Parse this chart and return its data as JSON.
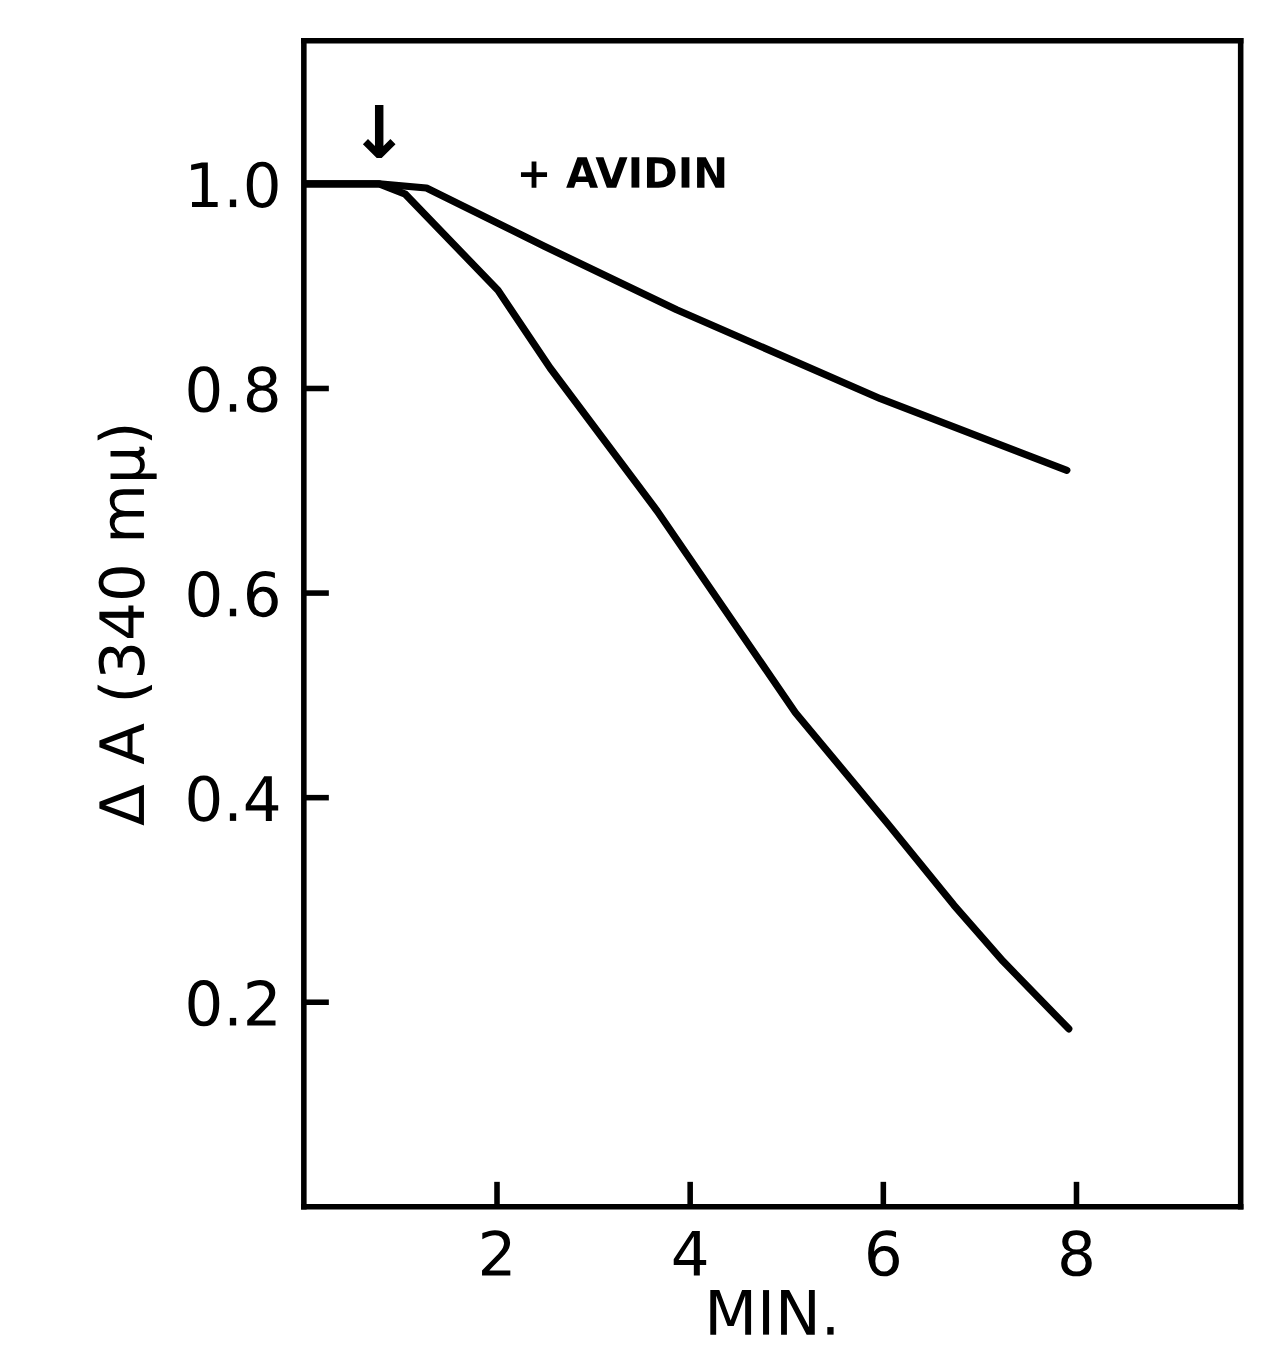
{
  "chart_data": {
    "type": "line",
    "xlabel": "MIN.",
    "ylabel": "Δ A (340 mμ)",
    "xlim": [
      0,
      9.7
    ],
    "ylim": [
      0,
      1.14
    ],
    "xticks": [
      2,
      4,
      6,
      8
    ],
    "yticks": [
      0.2,
      0.4,
      0.6,
      0.8,
      {
        "value": 1,
        "label": "1.0"
      }
    ],
    "grid": false,
    "legend": false,
    "marker": "none",
    "line_style": "solid",
    "annotations": [
      {
        "text": "↓",
        "x": 0.78,
        "y": 1.0
      }
    ],
    "series": [
      {
        "name": "+ AVIDIN",
        "color": "#000000",
        "x": [
          0,
          0.78,
          1.27,
          2.49,
          3.86,
          5.97,
          7.9
        ],
        "values": [
          1.0,
          1.0,
          0.996,
          0.939,
          0.877,
          0.79,
          0.72
        ]
      },
      {
        "color": "#000000",
        "x": [
          0,
          0.78,
          1.05,
          2.01,
          2.55,
          3.66,
          5.09,
          6.05,
          6.73,
          7.24,
          7.92
        ],
        "values": [
          1.0,
          1.0,
          0.99,
          0.896,
          0.82,
          0.68,
          0.483,
          0.374,
          0.295,
          0.24,
          0.174
        ]
      }
    ]
  }
}
